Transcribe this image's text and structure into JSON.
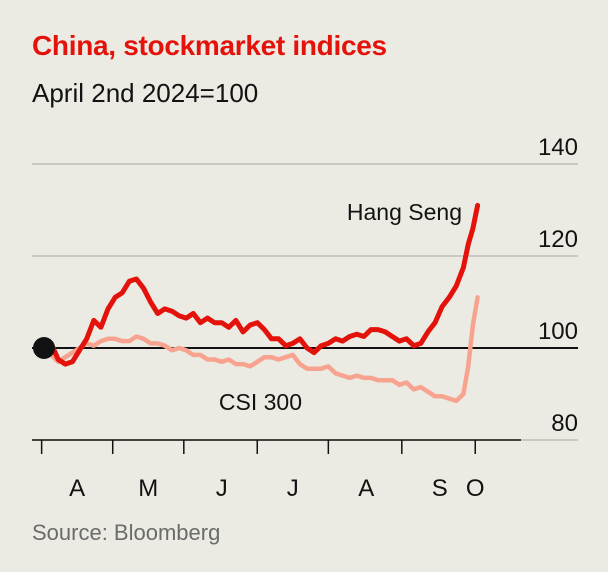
{
  "chart_data": {
    "type": "line",
    "title": "China, stockmarket indices",
    "subtitle": "April 2nd 2024=100",
    "source": "Source: Bloomberg",
    "xlabel": "",
    "ylabel": "",
    "ylim": [
      80,
      140
    ],
    "yticks": [
      80,
      100,
      120,
      140
    ],
    "ytick_labels": [
      "80",
      "100",
      "120",
      "140"
    ],
    "baseline": 100,
    "x_unit": "days since April 2nd 2024",
    "xlim": [
      0,
      184
    ],
    "xticks": [
      {
        "label": "A",
        "pos": 14
      },
      {
        "label": "M",
        "pos": 44
      },
      {
        "label": "J",
        "pos": 75
      },
      {
        "label": "J",
        "pos": 105
      },
      {
        "label": "A",
        "pos": 136
      },
      {
        "label": "S",
        "pos": 167
      },
      {
        "label": "O",
        "pos": 182
      }
    ],
    "month_boundaries": [
      -1,
      29,
      59,
      90,
      120,
      151,
      182
    ],
    "series": [
      {
        "name": "Hang Seng",
        "color": "#E3120B",
        "label": "Hang Seng",
        "x": [
          0,
          3,
          6,
          9,
          12,
          15,
          18,
          21,
          24,
          27,
          30,
          33,
          36,
          39,
          42,
          45,
          48,
          51,
          54,
          57,
          60,
          63,
          66,
          69,
          72,
          75,
          78,
          81,
          84,
          87,
          90,
          93,
          96,
          99,
          102,
          105,
          108,
          111,
          114,
          117,
          120,
          123,
          126,
          129,
          132,
          135,
          138,
          141,
          144,
          147,
          150,
          153,
          156,
          159,
          162,
          165,
          168,
          171,
          174,
          177,
          179,
          181,
          183
        ],
        "values": [
          100.0,
          101.0,
          97.5,
          96.5,
          97.0,
          99.5,
          102.0,
          106.0,
          104.5,
          108.5,
          111.0,
          112.0,
          114.5,
          115.0,
          113.0,
          110.0,
          107.5,
          108.5,
          108.0,
          107.0,
          106.5,
          107.5,
          105.5,
          106.5,
          105.5,
          105.5,
          104.5,
          106.0,
          103.5,
          105.0,
          105.5,
          104.0,
          102.0,
          102.0,
          100.5,
          101.0,
          102.0,
          100.0,
          99.0,
          100.5,
          101.0,
          102.0,
          101.5,
          102.5,
          103.0,
          102.5,
          104.0,
          104.0,
          103.5,
          102.5,
          101.5,
          102.0,
          100.5,
          101.0,
          103.5,
          105.5,
          109.0,
          111.0,
          113.5,
          117.5,
          122.5,
          126.0,
          131.0
        ]
      },
      {
        "name": "CSI 300",
        "color": "#F7A38F",
        "label": "CSI 300",
        "x": [
          0,
          3,
          6,
          9,
          12,
          15,
          18,
          21,
          24,
          27,
          30,
          33,
          36,
          39,
          42,
          45,
          48,
          51,
          54,
          57,
          60,
          63,
          66,
          69,
          72,
          75,
          78,
          81,
          84,
          87,
          90,
          93,
          96,
          99,
          102,
          105,
          108,
          111,
          114,
          117,
          120,
          123,
          126,
          129,
          132,
          135,
          138,
          141,
          144,
          147,
          150,
          153,
          156,
          159,
          162,
          165,
          168,
          171,
          174,
          177,
          179,
          181,
          183
        ],
        "values": [
          100.0,
          98.5,
          97.0,
          98.0,
          99.0,
          100.0,
          101.0,
          100.5,
          101.5,
          102.0,
          102.0,
          101.5,
          101.5,
          102.5,
          102.0,
          101.0,
          101.0,
          100.5,
          99.5,
          100.0,
          99.5,
          98.5,
          98.5,
          97.5,
          97.5,
          97.0,
          97.5,
          96.5,
          96.5,
          96.0,
          97.0,
          98.0,
          98.0,
          97.5,
          98.0,
          98.5,
          96.5,
          95.5,
          95.5,
          95.5,
          96.0,
          94.5,
          94.0,
          93.5,
          94.0,
          93.5,
          93.5,
          93.0,
          93.0,
          93.0,
          92.0,
          92.5,
          91.0,
          91.5,
          90.5,
          89.5,
          89.5,
          89.0,
          88.5,
          90.0,
          96.0,
          105.0,
          111.0
        ]
      }
    ]
  }
}
